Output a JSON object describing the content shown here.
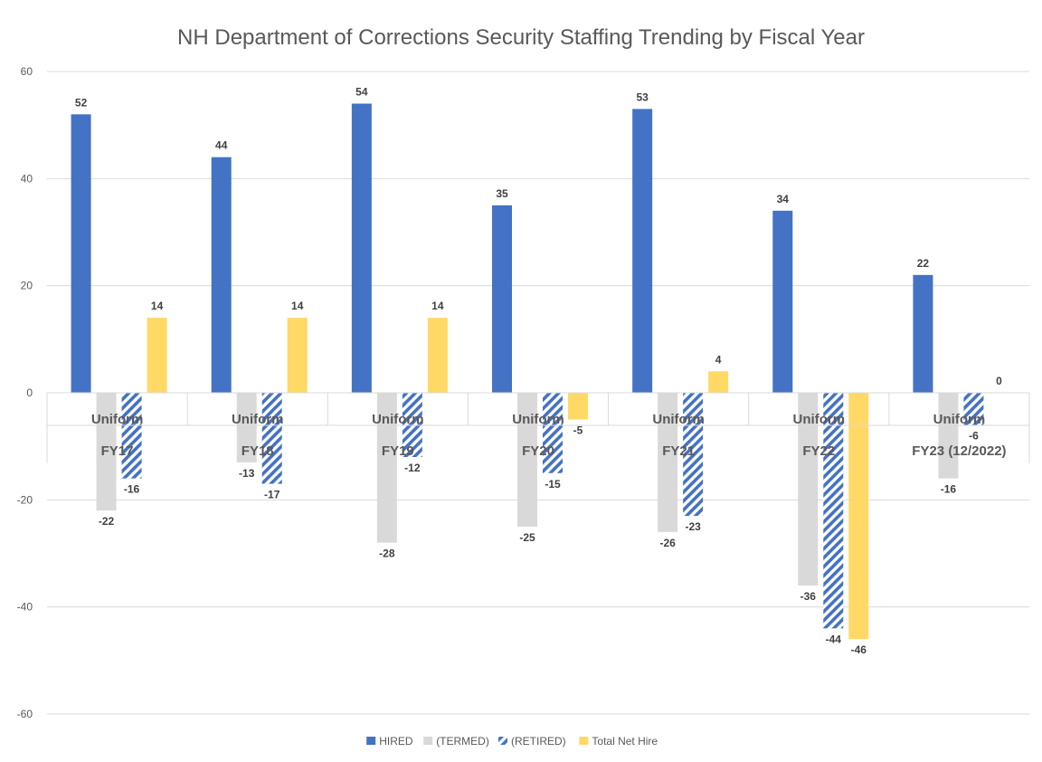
{
  "chart_data": {
    "type": "bar",
    "title": "NH Department of Corrections Security Staffing Trending by Fiscal Year",
    "categories": [
      [
        "Uniform",
        "FY17"
      ],
      [
        "Uniform",
        "FY18"
      ],
      [
        "Uniform",
        "FY19"
      ],
      [
        "Uniform",
        "FY20"
      ],
      [
        "Uniform",
        "FY21"
      ],
      [
        "Uniform",
        "FY22"
      ],
      [
        "Uniform",
        "FY23 (12/2022)"
      ]
    ],
    "series": [
      {
        "name": "HIRED",
        "color": "#4472c4",
        "pattern": "solid",
        "values": [
          52,
          44,
          54,
          35,
          53,
          34,
          22
        ]
      },
      {
        "name": "(TERMED)",
        "color": "#d9d9d9",
        "pattern": "solid",
        "values": [
          -22,
          -13,
          -28,
          -25,
          -26,
          -36,
          -16
        ]
      },
      {
        "name": "(RETIRED)",
        "color": "#4472c4",
        "pattern": "diagonal-stripes",
        "values": [
          -16,
          -17,
          -12,
          -15,
          -23,
          -44,
          -6
        ]
      },
      {
        "name": "Total Net Hire",
        "color": "#ffd966",
        "pattern": "solid",
        "values": [
          14,
          14,
          14,
          -5,
          4,
          -46,
          0
        ]
      }
    ],
    "ylim": [
      -60,
      60
    ],
    "yticks": [
      60,
      40,
      20,
      0,
      -20,
      -40,
      -60
    ],
    "grid": true,
    "legend": "bottom",
    "data_labels": true
  }
}
